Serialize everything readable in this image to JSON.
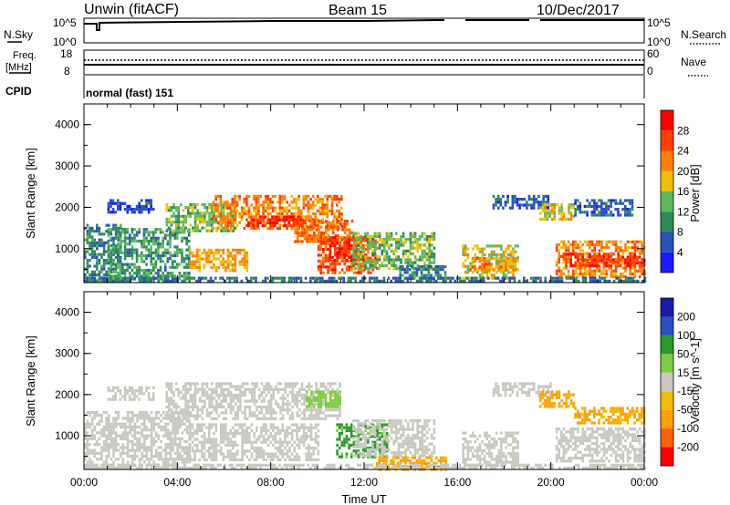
{
  "header": {
    "title": "Unwin (fitACF)",
    "beam": "Beam 15",
    "date": "10/Dec/2017"
  },
  "status_panels": {
    "nsky_label": "N.Sky",
    "nsearch_label": "N.Search",
    "nsky_ticks": [
      "10^5",
      "10^0"
    ],
    "nsearch_ticks": [
      "10^5",
      "10^0"
    ],
    "freq_label_line1": "Freq.",
    "freq_label_line2": "[MHz]",
    "freq_ticks": [
      "18",
      "8"
    ],
    "nave_label": "Nave",
    "nave_ticks": [
      "60",
      "0"
    ],
    "cpid_label": "CPID",
    "cpid_text": "normal (fast) 151"
  },
  "colors": {
    "power": [
      "#1a1aff",
      "#2a52be",
      "#2e8b57",
      "#5cb85c",
      "#f0c000",
      "#ff8000",
      "#ff4000",
      "#ff0000"
    ],
    "velocity": [
      "#ff0000",
      "#ff6000",
      "#ffa000",
      "#f0c000",
      "#c8c8c0",
      "#80cc40",
      "#2a9a2a",
      "#2a50c0",
      "#1a1aaa"
    ]
  },
  "chart_data": [
    {
      "type": "heatmap",
      "panel": "power",
      "xlabel": "",
      "ylabel": "Slant Range [km]",
      "xlim": [
        "00:00",
        "24:00"
      ],
      "ylim": [
        180,
        4500
      ],
      "y_ticks": [
        "1000",
        "2000",
        "3000",
        "4000"
      ],
      "colorbar_label": "Power [dB]",
      "colorbar_ticks": [
        "4",
        "8",
        "12",
        "16",
        "20",
        "24",
        "28"
      ],
      "color_levels": [
        0,
        4,
        8,
        12,
        16,
        20,
        24,
        28,
        30
      ],
      "regions": [
        {
          "t": [
            0.0,
            1.6
          ],
          "r": [
            250,
            1600
          ],
          "v": 9
        },
        {
          "t": [
            1.0,
            4.5
          ],
          "r": [
            300,
            1500
          ],
          "v": 11
        },
        {
          "t": [
            1.0,
            3.0
          ],
          "r": [
            1900,
            2200
          ],
          "v": 5
        },
        {
          "t": [
            3.5,
            6.5
          ],
          "r": [
            1400,
            2100
          ],
          "v": 14
        },
        {
          "t": [
            4.5,
            7.0
          ],
          "r": [
            500,
            1000
          ],
          "v": 20
        },
        {
          "t": [
            5.5,
            11.0
          ],
          "r": [
            1500,
            2300
          ],
          "v": 22
        },
        {
          "t": [
            7.0,
            9.5
          ],
          "r": [
            1550,
            1800
          ],
          "v": 28
        },
        {
          "t": [
            9.0,
            11.5
          ],
          "r": [
            1150,
            1700
          ],
          "v": 24
        },
        {
          "t": [
            10.0,
            12.5
          ],
          "r": [
            400,
            1300
          ],
          "v": 25
        },
        {
          "t": [
            10.5,
            12.0
          ],
          "r": [
            750,
            1250
          ],
          "v": 28
        },
        {
          "t": [
            11.5,
            15.0
          ],
          "r": [
            500,
            1400
          ],
          "v": 14
        },
        {
          "t": [
            13.5,
            15.5
          ],
          "r": [
            300,
            600
          ],
          "v": 9
        },
        {
          "t": [
            16.2,
            18.6
          ],
          "r": [
            300,
            1100
          ],
          "v": 17
        },
        {
          "t": [
            16.5,
            18.5
          ],
          "r": [
            500,
            800
          ],
          "v": 21
        },
        {
          "t": [
            17.5,
            20.0
          ],
          "r": [
            2000,
            2300
          ],
          "v": 6
        },
        {
          "t": [
            19.5,
            21.0
          ],
          "r": [
            1700,
            2100
          ],
          "v": 18
        },
        {
          "t": [
            21.0,
            23.5
          ],
          "r": [
            1800,
            2200
          ],
          "v": 7
        },
        {
          "t": [
            20.2,
            24.0
          ],
          "r": [
            350,
            1200
          ],
          "v": 22
        },
        {
          "t": [
            20.5,
            24.0
          ],
          "r": [
            550,
            900
          ],
          "v": 28
        },
        {
          "t": [
            0.0,
            24.0
          ],
          "r": [
            200,
            320
          ],
          "v": 8
        }
      ]
    },
    {
      "type": "heatmap",
      "panel": "velocity",
      "xlabel": "Time UT",
      "ylabel": "Slant Range [km]",
      "xlim": [
        "00:00",
        "24:00"
      ],
      "ylim": [
        180,
        4500
      ],
      "x_ticks": [
        "00:00",
        "04:00",
        "08:00",
        "12:00",
        "16:00",
        "20:00",
        "00:00"
      ],
      "y_ticks": [
        "1000",
        "2000",
        "3000",
        "4000"
      ],
      "colorbar_label": "Velocity [m s^-1]",
      "colorbar_ticks": [
        "200",
        "100",
        "50",
        "15",
        "-15",
        "-50",
        "-100",
        "-200"
      ],
      "color_levels": [
        -250,
        -200,
        -100,
        -50,
        -15,
        15,
        50,
        100,
        200,
        250
      ],
      "regions": [
        {
          "t": [
            0.0,
            4.5
          ],
          "r": [
            250,
            1600
          ],
          "v": 0
        },
        {
          "t": [
            1.0,
            3.0
          ],
          "r": [
            1900,
            2200
          ],
          "v": 0
        },
        {
          "t": [
            3.5,
            11.0
          ],
          "r": [
            1400,
            2300
          ],
          "v": 0
        },
        {
          "t": [
            4.5,
            10.0
          ],
          "r": [
            400,
            1300
          ],
          "v": 0
        },
        {
          "t": [
            9.5,
            11.0
          ],
          "r": [
            1700,
            2100
          ],
          "v": 35
        },
        {
          "t": [
            10.8,
            13.0
          ],
          "r": [
            500,
            1300
          ],
          "v": 60
        },
        {
          "t": [
            11.5,
            15.0
          ],
          "r": [
            500,
            1400
          ],
          "v": 0
        },
        {
          "t": [
            12.5,
            15.5
          ],
          "r": [
            200,
            500
          ],
          "v": -60
        },
        {
          "t": [
            16.2,
            18.6
          ],
          "r": [
            300,
            1100
          ],
          "v": 0
        },
        {
          "t": [
            17.5,
            20.0
          ],
          "r": [
            2000,
            2300
          ],
          "v": 0
        },
        {
          "t": [
            19.5,
            21.0
          ],
          "r": [
            1700,
            2100
          ],
          "v": -60
        },
        {
          "t": [
            21.0,
            24.0
          ],
          "r": [
            1300,
            1700
          ],
          "v": -60
        },
        {
          "t": [
            20.2,
            24.0
          ],
          "r": [
            350,
            1200
          ],
          "v": 0
        },
        {
          "t": [
            0.0,
            24.0
          ],
          "r": [
            200,
            320
          ],
          "v": 0
        }
      ]
    }
  ]
}
